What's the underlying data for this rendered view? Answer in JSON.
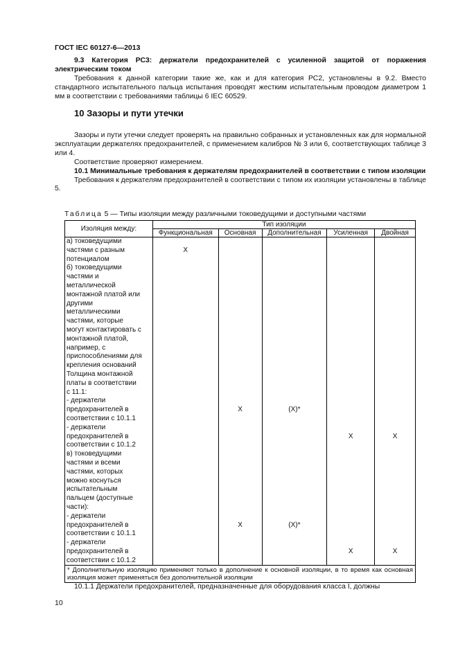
{
  "header": "ГОСТ IEC 60127-6—2013",
  "s93_title": "9.3 Категория РС3: держатели предохранителей с усиленной защитой от поражения электрическим током",
  "s93_text": "Требования к данной категории такие же, как и для категория РС2, установлены в 9.2. Вместо стандартного испытательного пальца испытания проводят жестким испытательным проводом диаметром 1 мм в соответствии с требованиями таблицы 6 IEC 60529.",
  "s10_title": "10 Зазоры и пути утечки",
  "s10_p1": "Зазоры и пути утечки следует проверять на правильно собранных и установленных как для нормальной эксплуатации держателях предохранителей, с применением калибров № 3 или 6, соответствующих таблице 3 или 4.",
  "s10_p2": "Соответствие проверяют измерением.",
  "s101_title": "10.1 Минимальные требования к держателям предохранителей в соответствии с типом изоляции",
  "s101_text": "Требования к держателям предохранителей в соответствии с типом их изоляции установлены в таблице 5.",
  "table": {
    "caption_word": "Таблица",
    "caption_rest": "5 — Типы изоляции между различными токоведущими и доступными частями",
    "col0": "Изоляция между:",
    "group": "Тип изоляции",
    "cols": [
      "Функциональная",
      "Основная",
      "Дополнительная",
      "Усиленная",
      "Двойная"
    ],
    "rows": [
      [
        "а) токоведущими",
        "",
        "",
        "",
        "",
        ""
      ],
      [
        "частями с разным",
        "X",
        "",
        "",
        "",
        ""
      ],
      [
        "потенциалом",
        "",
        "",
        "",
        "",
        ""
      ],
      [
        "б) токоведущими",
        "",
        "",
        "",
        "",
        ""
      ],
      [
        "частями и",
        "",
        "",
        "",
        "",
        ""
      ],
      [
        "металлической",
        "",
        "",
        "",
        "",
        ""
      ],
      [
        "монтажной платой или",
        "",
        "",
        "",
        "",
        ""
      ],
      [
        "другими",
        "",
        "",
        "",
        "",
        ""
      ],
      [
        "металлическими",
        "",
        "",
        "",
        "",
        ""
      ],
      [
        "частями, которые",
        "",
        "",
        "",
        "",
        ""
      ],
      [
        "могут контактировать с",
        "",
        "",
        "",
        "",
        ""
      ],
      [
        "монтажной платой,",
        "",
        "",
        "",
        "",
        ""
      ],
      [
        "например, с",
        "",
        "",
        "",
        "",
        ""
      ],
      [
        "приспособлениями для",
        "",
        "",
        "",
        "",
        ""
      ],
      [
        "крепления оснований",
        "",
        "",
        "",
        "",
        ""
      ],
      [
        "Толщина монтажной",
        "",
        "",
        "",
        "",
        ""
      ],
      [
        "платы в соответствии",
        "",
        "",
        "",
        "",
        ""
      ],
      [
        "с 11.1:",
        "",
        "",
        "",
        "",
        ""
      ],
      [
        "- держатели",
        "",
        "",
        "",
        "",
        ""
      ],
      [
        "предохранителей в",
        "",
        "X",
        "(X)*",
        "",
        ""
      ],
      [
        "соответствии с 10.1.1",
        "",
        "",
        "",
        "",
        ""
      ],
      [
        "- держатели",
        "",
        "",
        "",
        "",
        ""
      ],
      [
        "предохранителей в",
        "",
        "",
        "",
        "X",
        "X"
      ],
      [
        "соответствии с 10.1.2",
        "",
        "",
        "",
        "",
        ""
      ],
      [
        "в) токоведущими",
        "",
        "",
        "",
        "",
        ""
      ],
      [
        "частями и всеми",
        "",
        "",
        "",
        "",
        ""
      ],
      [
        "частями, которых",
        "",
        "",
        "",
        "",
        ""
      ],
      [
        "можно коснуться",
        "",
        "",
        "",
        "",
        ""
      ],
      [
        "испытательным",
        "",
        "",
        "",
        "",
        ""
      ],
      [
        "пальцем (доступные",
        "",
        "",
        "",
        "",
        ""
      ],
      [
        "части):",
        "",
        "",
        "",
        "",
        ""
      ],
      [
        "- держатели",
        "",
        "",
        "",
        "",
        ""
      ],
      [
        "предохранителей в",
        "",
        "X",
        "(X)*",
        "",
        ""
      ],
      [
        "соответствии с 10.1.1",
        "",
        "",
        "",
        "",
        ""
      ],
      [
        "- держатели",
        "",
        "",
        "",
        "",
        ""
      ],
      [
        "предохранителей в",
        "",
        "",
        "",
        "X",
        "X"
      ],
      [
        "соответствии с 10.1.2",
        "",
        "",
        "",
        "",
        ""
      ]
    ],
    "footnote": "* Дополнительную изоляцию применяют только в дополнение к основной изоляции, в то время как основная изоляция может применяться без дополнительной изоляции"
  },
  "s1011_text": "10.1.1 Держатели предохранителей, предназначенные для оборудования класса I, должны",
  "page_number": "10"
}
